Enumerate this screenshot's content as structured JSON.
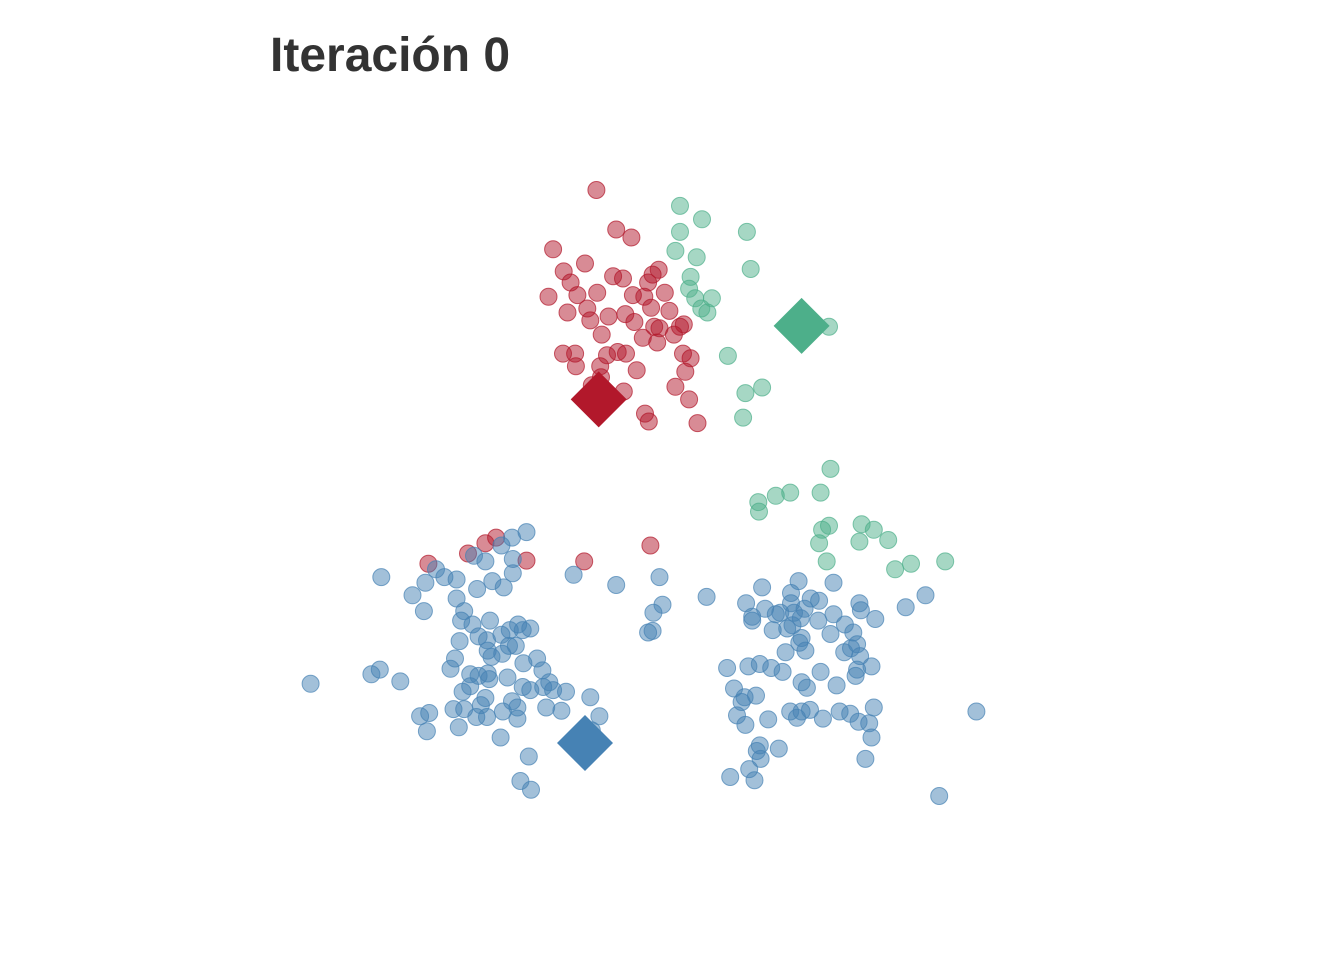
{
  "chart_data": {
    "type": "scatter",
    "title": "Iteración 0",
    "xlabel": "",
    "ylabel": "",
    "grid": false,
    "axes_visible": false,
    "legend": "none",
    "xlim": [
      0,
      10
    ],
    "ylim": [
      0,
      10
    ],
    "colors": {
      "red": "#B2182B",
      "green": "#4DAF8A",
      "blue": "#4682B4"
    },
    "series": [
      {
        "color": "red",
        "points": [
          [
            3.9,
            9.05
          ],
          [
            4.16,
            8.55
          ],
          [
            4.36,
            8.45
          ],
          [
            3.33,
            8.3
          ],
          [
            3.47,
            8.02
          ],
          [
            3.75,
            8.12
          ],
          [
            4.25,
            7.93
          ],
          [
            3.56,
            7.88
          ],
          [
            4.12,
            7.96
          ],
          [
            4.64,
            7.98
          ],
          [
            4.72,
            8.04
          ],
          [
            4.58,
            7.88
          ],
          [
            4.38,
            7.72
          ],
          [
            4.53,
            7.7
          ],
          [
            4.8,
            7.75
          ],
          [
            3.27,
            7.7
          ],
          [
            3.65,
            7.72
          ],
          [
            3.91,
            7.75
          ],
          [
            4.62,
            7.56
          ],
          [
            4.86,
            7.52
          ],
          [
            4.06,
            7.45
          ],
          [
            4.28,
            7.48
          ],
          [
            3.52,
            7.5
          ],
          [
            3.78,
            7.55
          ],
          [
            4.4,
            7.38
          ],
          [
            4.66,
            7.32
          ],
          [
            4.73,
            7.3
          ],
          [
            5.0,
            7.32
          ],
          [
            5.05,
            7.35
          ],
          [
            4.92,
            7.22
          ],
          [
            3.82,
            7.4
          ],
          [
            4.51,
            7.18
          ],
          [
            3.97,
            7.22
          ],
          [
            4.7,
            7.12
          ],
          [
            4.18,
            7.0
          ],
          [
            4.04,
            6.96
          ],
          [
            3.46,
            6.98
          ],
          [
            3.62,
            6.98
          ],
          [
            3.95,
            6.82
          ],
          [
            4.29,
            6.98
          ],
          [
            5.04,
            6.98
          ],
          [
            5.14,
            6.92
          ],
          [
            3.63,
            6.82
          ],
          [
            3.96,
            6.68
          ],
          [
            4.43,
            6.77
          ],
          [
            5.07,
            6.75
          ],
          [
            3.84,
            6.58
          ],
          [
            4.26,
            6.5
          ],
          [
            4.94,
            6.56
          ],
          [
            5.12,
            6.4
          ],
          [
            4.54,
            6.22
          ],
          [
            4.59,
            6.12
          ],
          [
            5.23,
            6.1
          ],
          [
            1.69,
            4.32
          ],
          [
            2.21,
            4.45
          ],
          [
            2.44,
            4.58
          ],
          [
            2.58,
            4.65
          ],
          [
            2.98,
            4.36
          ],
          [
            3.74,
            4.35
          ],
          [
            4.61,
            4.55
          ]
        ]
      },
      {
        "color": "green",
        "points": [
          [
            5.0,
            8.85
          ],
          [
            5.29,
            8.68
          ],
          [
            5.0,
            8.52
          ],
          [
            5.88,
            8.52
          ],
          [
            4.94,
            8.28
          ],
          [
            5.22,
            8.2
          ],
          [
            5.93,
            8.05
          ],
          [
            5.14,
            7.95
          ],
          [
            5.12,
            7.8
          ],
          [
            5.2,
            7.68
          ],
          [
            5.42,
            7.68
          ],
          [
            5.28,
            7.55
          ],
          [
            5.36,
            7.5
          ],
          [
            6.96,
            7.32
          ],
          [
            5.63,
            6.95
          ],
          [
            5.86,
            6.48
          ],
          [
            6.08,
            6.55
          ],
          [
            5.83,
            6.17
          ],
          [
            6.98,
            5.52
          ],
          [
            6.03,
            5.1
          ],
          [
            6.26,
            5.18
          ],
          [
            6.45,
            5.22
          ],
          [
            6.85,
            5.22
          ],
          [
            6.04,
            4.98
          ],
          [
            6.87,
            4.75
          ],
          [
            6.96,
            4.8
          ],
          [
            7.39,
            4.82
          ],
          [
            7.55,
            4.75
          ],
          [
            6.83,
            4.58
          ],
          [
            7.36,
            4.6
          ],
          [
            7.74,
            4.62
          ],
          [
            6.93,
            4.35
          ],
          [
            7.83,
            4.25
          ],
          [
            8.04,
            4.32
          ],
          [
            8.49,
            4.35
          ]
        ]
      },
      {
        "color": "blue",
        "points": [
          [
            2.98,
            4.72
          ],
          [
            2.79,
            4.65
          ],
          [
            2.65,
            4.55
          ],
          [
            2.29,
            4.42
          ],
          [
            2.44,
            4.35
          ],
          [
            2.8,
            4.38
          ],
          [
            1.79,
            4.25
          ],
          [
            1.9,
            4.15
          ],
          [
            1.07,
            4.15
          ],
          [
            1.65,
            4.08
          ],
          [
            2.06,
            4.12
          ],
          [
            1.48,
            3.92
          ],
          [
            2.06,
            3.88
          ],
          [
            2.8,
            4.2
          ],
          [
            3.6,
            4.18
          ],
          [
            2.53,
            4.1
          ],
          [
            2.68,
            4.02
          ],
          [
            2.33,
            4.0
          ],
          [
            1.63,
            3.72
          ],
          [
            2.16,
            3.72
          ],
          [
            2.27,
            3.55
          ],
          [
            2.35,
            3.4
          ],
          [
            2.47,
            3.22
          ],
          [
            2.12,
            3.6
          ],
          [
            2.5,
            3.6
          ],
          [
            2.76,
            3.48
          ],
          [
            2.93,
            3.48
          ],
          [
            2.87,
            3.55
          ],
          [
            3.03,
            3.5
          ],
          [
            2.65,
            3.42
          ],
          [
            2.75,
            3.28
          ],
          [
            2.84,
            3.28
          ],
          [
            2.1,
            3.34
          ],
          [
            2.46,
            3.35
          ],
          [
            2.66,
            3.18
          ],
          [
            2.94,
            3.06
          ],
          [
            3.12,
            3.12
          ],
          [
            0.14,
            2.8
          ],
          [
            0.94,
            2.92
          ],
          [
            1.05,
            2.98
          ],
          [
            1.32,
            2.83
          ],
          [
            1.98,
            2.99
          ],
          [
            2.24,
            2.92
          ],
          [
            2.35,
            2.9
          ],
          [
            2.47,
            2.93
          ],
          [
            2.04,
            3.12
          ],
          [
            2.52,
            3.14
          ],
          [
            2.93,
            2.76
          ],
          [
            3.03,
            2.72
          ],
          [
            2.73,
            2.88
          ],
          [
            2.49,
            2.86
          ],
          [
            2.24,
            2.77
          ],
          [
            3.19,
            2.97
          ],
          [
            2.14,
            2.7
          ],
          [
            2.16,
            2.48
          ],
          [
            2.44,
            2.62
          ],
          [
            2.38,
            2.53
          ],
          [
            2.46,
            2.38
          ],
          [
            2.67,
            2.45
          ],
          [
            2.32,
            2.38
          ],
          [
            1.58,
            2.39
          ],
          [
            1.7,
            2.43
          ],
          [
            3.2,
            2.76
          ],
          [
            3.28,
            2.82
          ],
          [
            3.33,
            2.72
          ],
          [
            3.5,
            2.7
          ],
          [
            3.82,
            2.63
          ],
          [
            2.86,
            2.5
          ],
          [
            3.24,
            2.5
          ],
          [
            3.44,
            2.46
          ],
          [
            1.67,
            2.2
          ],
          [
            2.02,
            2.48
          ],
          [
            2.79,
            2.58
          ],
          [
            2.86,
            2.36
          ],
          [
            2.09,
            2.25
          ],
          [
            2.64,
            2.12
          ],
          [
            3.84,
            2.21
          ],
          [
            3.94,
            2.39
          ],
          [
            3.01,
            1.88
          ],
          [
            2.9,
            1.57
          ],
          [
            3.04,
            1.46
          ],
          [
            4.16,
            4.05
          ],
          [
            4.77,
            3.8
          ],
          [
            4.64,
            3.47
          ],
          [
            5.35,
            3.9
          ],
          [
            5.87,
            3.82
          ],
          [
            6.46,
            3.95
          ],
          [
            6.56,
            4.1
          ],
          [
            7.02,
            4.08
          ],
          [
            6.08,
            4.02
          ],
          [
            6.64,
            3.75
          ],
          [
            6.83,
            3.85
          ],
          [
            5.95,
            3.65
          ],
          [
            6.26,
            3.68
          ],
          [
            5.95,
            3.6
          ],
          [
            6.6,
            3.38
          ],
          [
            6.82,
            3.6
          ],
          [
            7.02,
            3.68
          ],
          [
            7.36,
            3.82
          ],
          [
            7.38,
            3.73
          ],
          [
            7.57,
            3.62
          ],
          [
            7.97,
            3.77
          ],
          [
            8.23,
            3.92
          ],
          [
            7.17,
            3.55
          ],
          [
            7.28,
            3.45
          ],
          [
            6.46,
            3.82
          ],
          [
            6.72,
            3.88
          ],
          [
            6.5,
            3.7
          ],
          [
            6.32,
            3.7
          ],
          [
            6.12,
            3.75
          ],
          [
            6.41,
            3.5
          ],
          [
            6.98,
            3.43
          ],
          [
            6.22,
            3.48
          ],
          [
            6.48,
            3.54
          ],
          [
            6.59,
            3.63
          ],
          [
            6.57,
            3.32
          ],
          [
            6.65,
            3.22
          ],
          [
            7.25,
            3.25
          ],
          [
            7.33,
            3.3
          ],
          [
            7.16,
            3.2
          ],
          [
            5.62,
            3.0
          ],
          [
            5.9,
            3.02
          ],
          [
            6.2,
            3.0
          ],
          [
            6.35,
            2.95
          ],
          [
            6.39,
            3.2
          ],
          [
            6.05,
            3.05
          ],
          [
            6.6,
            2.82
          ],
          [
            6.85,
            2.95
          ],
          [
            7.33,
            2.98
          ],
          [
            7.37,
            3.15
          ],
          [
            7.52,
            3.02
          ],
          [
            5.71,
            2.74
          ],
          [
            5.85,
            2.63
          ],
          [
            6.0,
            2.65
          ],
          [
            6.67,
            2.75
          ],
          [
            7.06,
            2.78
          ],
          [
            7.31,
            2.9
          ],
          [
            6.45,
            2.45
          ],
          [
            6.71,
            2.47
          ],
          [
            7.1,
            2.45
          ],
          [
            7.24,
            2.42
          ],
          [
            7.55,
            2.5
          ],
          [
            5.75,
            2.4
          ],
          [
            5.86,
            2.28
          ],
          [
            5.81,
            2.57
          ],
          [
            6.16,
            2.35
          ],
          [
            6.54,
            2.37
          ],
          [
            6.6,
            2.45
          ],
          [
            6.88,
            2.36
          ],
          [
            7.35,
            2.32
          ],
          [
            7.49,
            2.3
          ],
          [
            7.52,
            2.12
          ],
          [
            6.05,
            2.02
          ],
          [
            6.01,
            1.95
          ],
          [
            6.3,
            1.98
          ],
          [
            6.06,
            1.85
          ],
          [
            5.91,
            1.72
          ],
          [
            7.44,
            1.85
          ],
          [
            5.98,
            1.58
          ],
          [
            5.66,
            1.62
          ],
          [
            4.73,
            4.15
          ],
          [
            4.65,
            3.7
          ],
          [
            4.58,
            3.45
          ],
          [
            8.9,
            2.45
          ],
          [
            8.41,
            1.38
          ]
        ]
      }
    ],
    "centroids": [
      {
        "color": "red",
        "x": 3.93,
        "y": 6.4
      },
      {
        "color": "green",
        "x": 6.6,
        "y": 7.33
      },
      {
        "color": "blue",
        "x": 3.75,
        "y": 2.05
      }
    ]
  }
}
